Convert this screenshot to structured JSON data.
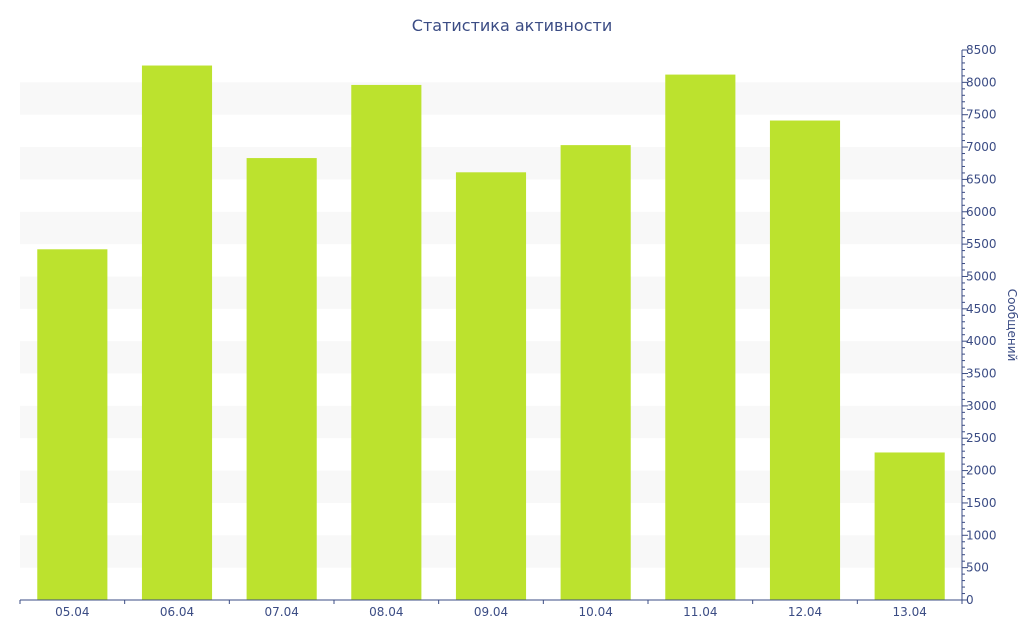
{
  "chart_data": {
    "type": "bar",
    "title": "Статистика активности",
    "ylabel": "Сообщений",
    "xlabel": "",
    "categories": [
      "05.04",
      "06.04",
      "07.04",
      "08.04",
      "09.04",
      "10.04",
      "11.04",
      "12.04",
      "13.04"
    ],
    "values": [
      5420,
      8260,
      6830,
      7960,
      6610,
      7030,
      8120,
      7410,
      2280
    ],
    "ylim": [
      0,
      8500
    ],
    "y_ticks": [
      0,
      500,
      1000,
      1500,
      2000,
      2500,
      3000,
      3500,
      4000,
      4500,
      5000,
      5500,
      6000,
      6500,
      7000,
      7500,
      8000,
      8500
    ],
    "y_axis_position": "right",
    "grid": "alternating horizontal bands",
    "colors": {
      "bar": "#bce22e",
      "band": "#f8f8f8",
      "axis": "#3b4c84",
      "text": "#3b4c84"
    }
  }
}
